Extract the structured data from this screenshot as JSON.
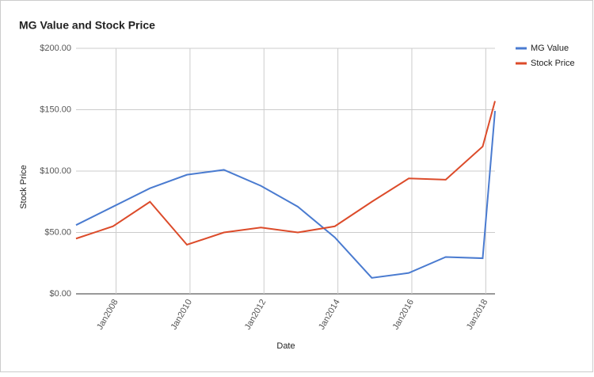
{
  "chart_data": {
    "type": "line",
    "title": "MG Value and Stock Price",
    "x_label": "Date",
    "y_label": "Stock Price",
    "x": [
      "2006-12",
      "2007-12",
      "2008-12",
      "2009-12",
      "2010-12",
      "2011-12",
      "2012-12",
      "2013-12",
      "2014-12",
      "2015-12",
      "2016-12",
      "2017-12",
      "2018-04"
    ],
    "series": [
      {
        "name": "MG Value",
        "color": "#4a7bd0",
        "values": [
          56,
          71,
          86,
          97,
          101,
          88,
          71,
          46,
          13,
          17,
          30,
          29,
          149
        ]
      },
      {
        "name": "Stock Price",
        "color": "#dc4b2a",
        "values": [
          45,
          55,
          75,
          40,
          50,
          54,
          50,
          55,
          75,
          94,
          93,
          120,
          157
        ]
      }
    ],
    "xlim": [
      "2006-12",
      "2018-04"
    ],
    "xticks": [
      {
        "value": "2008-01",
        "label": "Jan2008"
      },
      {
        "value": "2010-01",
        "label": "Jan2010"
      },
      {
        "value": "2012-01",
        "label": "Jan2012"
      },
      {
        "value": "2014-01",
        "label": "Jan2014"
      },
      {
        "value": "2016-01",
        "label": "Jan2016"
      },
      {
        "value": "2018-01",
        "label": "Jan2018"
      }
    ],
    "ylim": [
      0,
      200
    ],
    "yticks": [
      {
        "value": 0,
        "label": "$0.00"
      },
      {
        "value": 50,
        "label": "$50.00"
      },
      {
        "value": 100,
        "label": "$100.00"
      },
      {
        "value": 150,
        "label": "$150.00"
      },
      {
        "value": 200,
        "label": "$200.00"
      }
    ],
    "grid": true,
    "legend": "right"
  }
}
